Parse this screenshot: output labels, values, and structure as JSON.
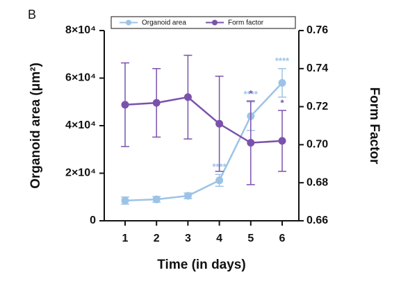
{
  "chart_data": {
    "type": "line",
    "panel_label": "B",
    "x_label": "Time (in days)",
    "y_label": "Organoid area (μm²)",
    "y2_label": "Form Factor",
    "categories": [
      "1",
      "2",
      "3",
      "4",
      "5",
      "6"
    ],
    "ylim": [
      0,
      80000
    ],
    "yticks": [
      0,
      {
        "value": 20000,
        "label": "2×10⁴"
      },
      {
        "value": 40000,
        "label": "4×10⁴"
      },
      {
        "value": 60000,
        "label": "6×10⁴"
      },
      {
        "value": 80000,
        "label": "8×10⁴"
      }
    ],
    "y2lim": [
      0.66,
      0.76
    ],
    "y2ticks": [
      0.66,
      0.68,
      {
        "value": 0.7,
        "label": "0.70"
      },
      0.72,
      0.74,
      0.76
    ],
    "legend": "top",
    "series": [
      {
        "name": "Organoid area",
        "color": "#9cc3e6",
        "axis": "y",
        "values": [
          8500,
          9000,
          10500,
          17000,
          44000,
          58000
        ],
        "errors": [
          1500,
          1200,
          1200,
          2500,
          6000,
          6000
        ],
        "significance": [
          null,
          null,
          null,
          "****",
          "****",
          "****"
        ]
      },
      {
        "name": "Form factor",
        "color": "#7b52ab",
        "axis": "y2",
        "values": [
          0.721,
          0.722,
          0.725,
          0.711,
          0.701,
          0.702
        ],
        "errors": [
          0.022,
          0.018,
          0.022,
          0.025,
          0.022,
          0.016
        ],
        "significance": [
          null,
          null,
          null,
          null,
          "*",
          "*"
        ]
      }
    ]
  }
}
